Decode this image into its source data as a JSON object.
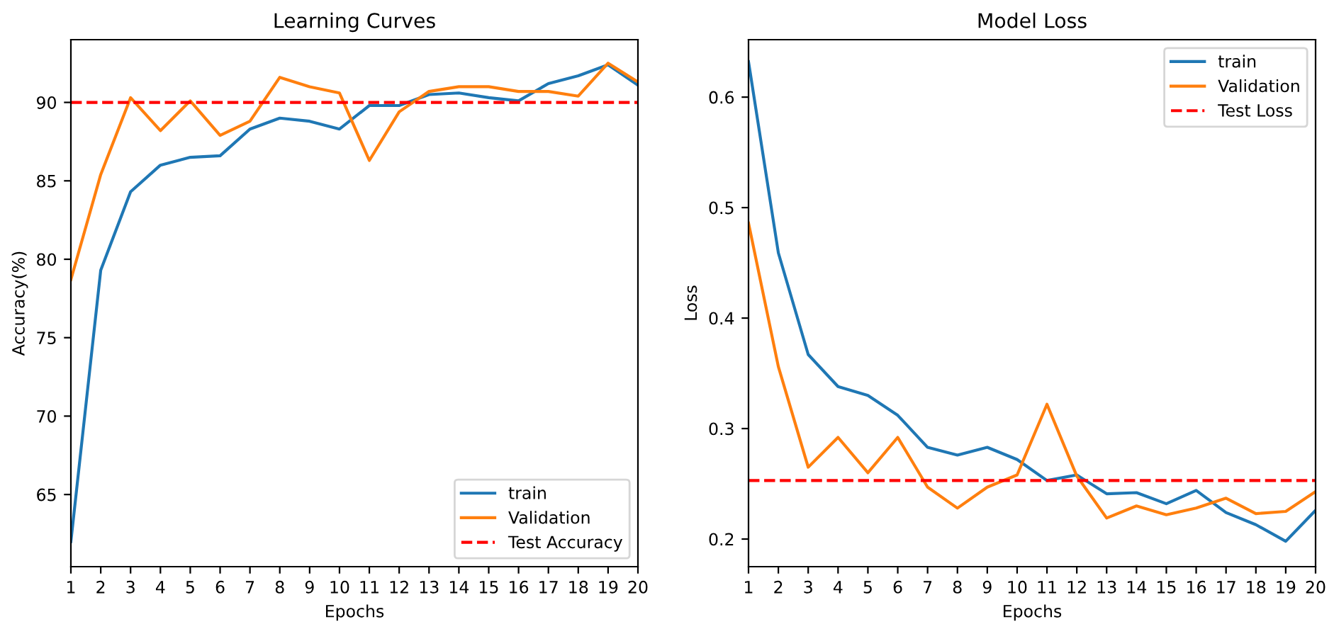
{
  "chart_data": [
    {
      "type": "line",
      "title": "Learning Curves",
      "xlabel": "Epochs",
      "ylabel": "Accuracy(%)",
      "x": [
        1,
        2,
        3,
        4,
        5,
        6,
        7,
        8,
        9,
        10,
        11,
        12,
        13,
        14,
        15,
        16,
        17,
        18,
        19,
        20
      ],
      "series": [
        {
          "name": "train",
          "color": "#1f77b4",
          "values": [
            62.0,
            79.3,
            84.3,
            86.0,
            86.5,
            86.6,
            88.3,
            89.0,
            88.8,
            88.3,
            89.8,
            89.8,
            90.5,
            90.6,
            90.3,
            90.1,
            91.2,
            91.7,
            92.4,
            91.1
          ]
        },
        {
          "name": "Validation",
          "color": "#ff7f0e",
          "values": [
            78.7,
            85.4,
            90.3,
            88.2,
            90.1,
            87.9,
            88.8,
            91.6,
            91.0,
            90.6,
            86.3,
            89.4,
            90.7,
            91.0,
            91.0,
            90.7,
            90.7,
            90.4,
            92.5,
            91.3
          ]
        }
      ],
      "ref_lines": [
        {
          "axis": "y",
          "value": 90,
          "label": "Test Accuracy",
          "color": "#ff0000",
          "line_style": "dashed"
        }
      ],
      "xlim": [
        1,
        20
      ],
      "xticks": [
        1,
        2,
        3,
        4,
        5,
        6,
        7,
        8,
        9,
        10,
        11,
        12,
        13,
        14,
        15,
        16,
        17,
        18,
        19,
        20
      ],
      "ylim": [
        60.4,
        94.0
      ],
      "yticks": [
        65,
        70,
        75,
        80,
        85,
        90
      ],
      "legend": "bottom right"
    },
    {
      "type": "line",
      "title": "Model Loss",
      "xlabel": "Epochs",
      "ylabel": "Loss",
      "x": [
        1,
        2,
        3,
        4,
        5,
        6,
        7,
        8,
        9,
        10,
        11,
        12,
        13,
        14,
        15,
        16,
        17,
        18,
        19,
        20
      ],
      "series": [
        {
          "name": "train",
          "color": "#1f77b4",
          "values": [
            0.632,
            0.459,
            0.367,
            0.338,
            0.33,
            0.312,
            0.283,
            0.276,
            0.283,
            0.272,
            0.253,
            0.258,
            0.241,
            0.242,
            0.232,
            0.244,
            0.224,
            0.213,
            0.198,
            0.226
          ]
        },
        {
          "name": "Validation",
          "color": "#ff7f0e",
          "values": [
            0.486,
            0.356,
            0.265,
            0.292,
            0.26,
            0.292,
            0.247,
            0.228,
            0.247,
            0.258,
            0.322,
            0.257,
            0.219,
            0.23,
            0.222,
            0.228,
            0.237,
            0.223,
            0.225,
            0.243
          ]
        }
      ],
      "ref_lines": [
        {
          "axis": "y",
          "value": 0.253,
          "label": "Test Loss",
          "color": "#ff0000",
          "line_style": "dashed"
        }
      ],
      "xlim": [
        1,
        20
      ],
      "xticks": [
        1,
        2,
        3,
        4,
        5,
        6,
        7,
        8,
        9,
        10,
        11,
        12,
        13,
        14,
        15,
        16,
        17,
        18,
        19,
        20
      ],
      "ylim": [
        0.175,
        0.652
      ],
      "yticks": [
        0.2,
        0.3,
        0.4,
        0.5,
        0.6
      ],
      "legend": "top right"
    }
  ]
}
